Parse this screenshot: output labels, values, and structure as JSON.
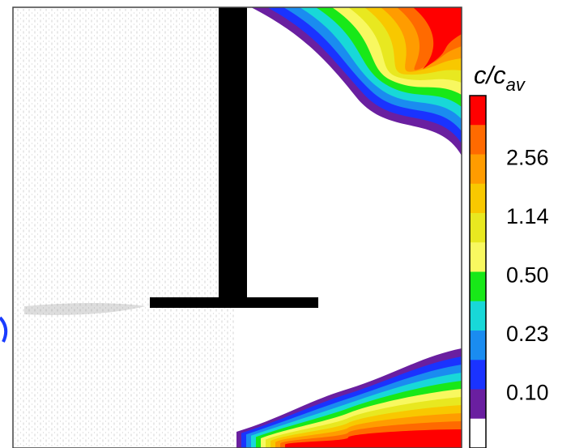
{
  "colorbar": {
    "label": "c/c",
    "label_subscript": "av",
    "ticks": [
      "2.56",
      "1.14",
      "0.50",
      "0.23",
      "0.10"
    ]
  }
}
